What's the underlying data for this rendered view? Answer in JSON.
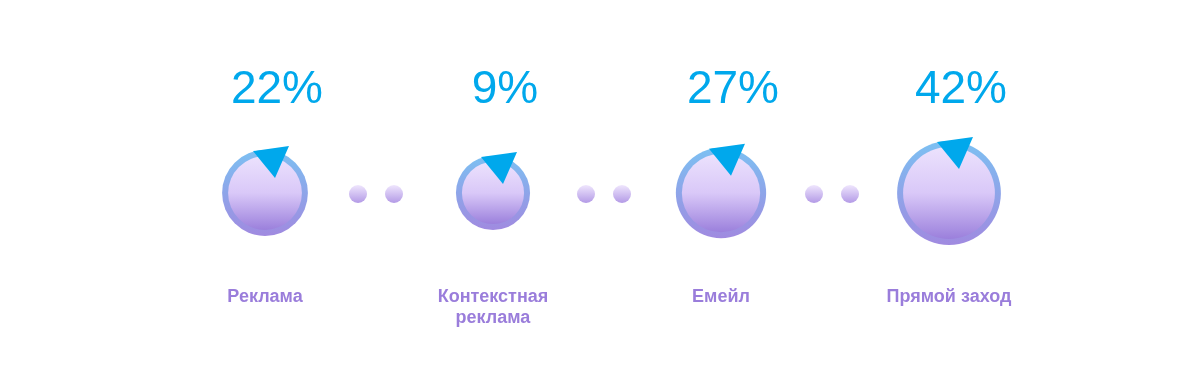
{
  "chart_data": {
    "type": "other",
    "categories": [
      "Реклама",
      "Контекстная реклама",
      "Емейл",
      "Прямой заход"
    ],
    "values": [
      22,
      9,
      27,
      42
    ],
    "value_labels": [
      "22%",
      "9%",
      "27%",
      "42%"
    ],
    "color": "#9b80dc"
  }
}
